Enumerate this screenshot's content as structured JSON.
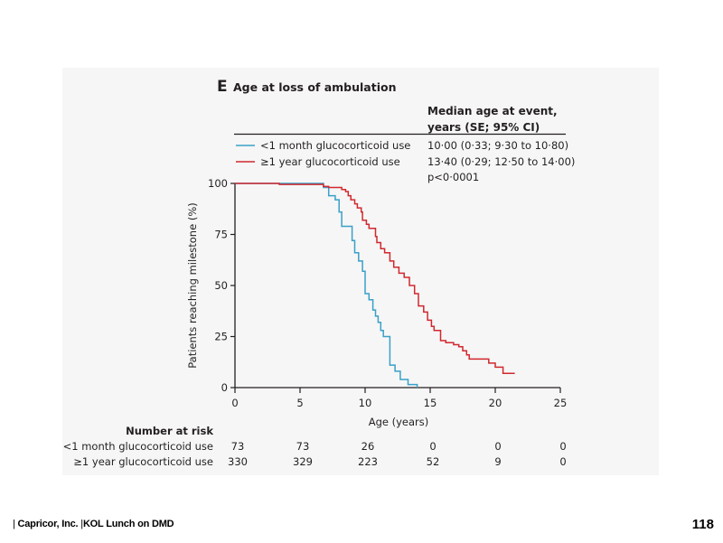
{
  "chart_data": {
    "type": "line",
    "subtype": "kaplan-meier step",
    "panel_letter": "E",
    "title": "Age at loss of ambulation",
    "xlabel": "Age (years)",
    "ylabel": "Patients reaching milestone (%)",
    "xlim": [
      0,
      25
    ],
    "ylim": [
      0,
      100
    ],
    "x_ticks": [
      0,
      5,
      10,
      15,
      20,
      25
    ],
    "y_ticks": [
      0,
      25,
      50,
      75,
      100
    ],
    "grid": false,
    "legend_position": "top",
    "legend_header": [
      "Median age at event,",
      "years (SE; 95% CI)"
    ],
    "p_value": "p<0·0001",
    "series": [
      {
        "name": "<1 month glucocorticoid use",
        "color": "#3aa0c8",
        "median_text": "10·00 (0·33; 9·30 to 10·80)",
        "points": [
          [
            0,
            100
          ],
          [
            6.8,
            100
          ],
          [
            6.8,
            98
          ],
          [
            7.2,
            98
          ],
          [
            7.2,
            94
          ],
          [
            7.7,
            94
          ],
          [
            7.7,
            92
          ],
          [
            8.0,
            92
          ],
          [
            8.0,
            86
          ],
          [
            8.2,
            86
          ],
          [
            8.2,
            79
          ],
          [
            9.0,
            79
          ],
          [
            9.0,
            72
          ],
          [
            9.2,
            72
          ],
          [
            9.2,
            66
          ],
          [
            9.5,
            66
          ],
          [
            9.5,
            62
          ],
          [
            9.8,
            62
          ],
          [
            9.8,
            57
          ],
          [
            10.0,
            57
          ],
          [
            10.0,
            46
          ],
          [
            10.3,
            46
          ],
          [
            10.3,
            43
          ],
          [
            10.6,
            43
          ],
          [
            10.6,
            38
          ],
          [
            10.8,
            38
          ],
          [
            10.8,
            35
          ],
          [
            11.0,
            35
          ],
          [
            11.0,
            32
          ],
          [
            11.2,
            32
          ],
          [
            11.2,
            28
          ],
          [
            11.4,
            28
          ],
          [
            11.4,
            25
          ],
          [
            11.9,
            25
          ],
          [
            11.9,
            11
          ],
          [
            12.3,
            11
          ],
          [
            12.3,
            8
          ],
          [
            12.7,
            8
          ],
          [
            12.7,
            4
          ],
          [
            13.3,
            4
          ],
          [
            13.3,
            1.5
          ],
          [
            14.0,
            1.5
          ],
          [
            14.0,
            0
          ]
        ]
      },
      {
        "name": "≥1 year glucocorticoid use",
        "color": "#d0282e",
        "median_text": "13·40 (0·29; 12·50 to 14·00)",
        "points": [
          [
            0,
            100
          ],
          [
            3.4,
            100
          ],
          [
            3.4,
            99.5
          ],
          [
            6.8,
            99.5
          ],
          [
            6.8,
            98.5
          ],
          [
            7.2,
            98.5
          ],
          [
            7.2,
            98
          ],
          [
            8.2,
            98
          ],
          [
            8.2,
            97
          ],
          [
            8.5,
            97
          ],
          [
            8.5,
            96
          ],
          [
            8.7,
            96
          ],
          [
            8.7,
            94
          ],
          [
            8.9,
            94
          ],
          [
            8.9,
            92
          ],
          [
            9.2,
            92
          ],
          [
            9.2,
            90
          ],
          [
            9.4,
            90
          ],
          [
            9.4,
            88
          ],
          [
            9.7,
            88
          ],
          [
            9.7,
            86
          ],
          [
            9.8,
            86
          ],
          [
            9.8,
            82
          ],
          [
            10.1,
            82
          ],
          [
            10.1,
            80
          ],
          [
            10.3,
            80
          ],
          [
            10.3,
            78
          ],
          [
            10.8,
            78
          ],
          [
            10.8,
            74
          ],
          [
            10.9,
            74
          ],
          [
            10.9,
            71
          ],
          [
            11.2,
            71
          ],
          [
            11.2,
            68
          ],
          [
            11.5,
            68
          ],
          [
            11.5,
            66
          ],
          [
            11.9,
            66
          ],
          [
            11.9,
            62
          ],
          [
            12.2,
            62
          ],
          [
            12.2,
            59
          ],
          [
            12.6,
            59
          ],
          [
            12.6,
            56
          ],
          [
            13.0,
            56
          ],
          [
            13.0,
            54
          ],
          [
            13.4,
            54
          ],
          [
            13.4,
            50
          ],
          [
            13.8,
            50
          ],
          [
            13.8,
            46
          ],
          [
            14.1,
            46
          ],
          [
            14.1,
            40
          ],
          [
            14.5,
            40
          ],
          [
            14.5,
            37
          ],
          [
            14.8,
            37
          ],
          [
            14.8,
            33
          ],
          [
            15.1,
            33
          ],
          [
            15.1,
            30
          ],
          [
            15.3,
            30
          ],
          [
            15.3,
            28
          ],
          [
            15.8,
            28
          ],
          [
            15.8,
            23
          ],
          [
            16.2,
            23
          ],
          [
            16.2,
            22
          ],
          [
            16.8,
            22
          ],
          [
            16.8,
            21
          ],
          [
            17.2,
            21
          ],
          [
            17.2,
            20
          ],
          [
            17.5,
            20
          ],
          [
            17.5,
            18
          ],
          [
            17.8,
            18
          ],
          [
            17.8,
            16
          ],
          [
            18.0,
            16
          ],
          [
            18.0,
            14
          ],
          [
            19.5,
            14
          ],
          [
            19.5,
            12
          ],
          [
            20.0,
            12
          ],
          [
            20.0,
            10
          ],
          [
            20.6,
            10
          ],
          [
            20.6,
            7
          ],
          [
            21.5,
            7
          ]
        ]
      }
    ],
    "number_at_risk": {
      "title": "Number at risk",
      "times": [
        0,
        5,
        10,
        15,
        20,
        25
      ],
      "rows": [
        {
          "label": "<1 month glucocorticoid use",
          "values": [
            73,
            73,
            26,
            0,
            0,
            0
          ]
        },
        {
          "label": "≥1 year glucocorticoid use",
          "values": [
            330,
            329,
            223,
            52,
            9,
            0
          ]
        }
      ]
    }
  },
  "footer": {
    "company": "Capricor, Inc.",
    "event": "KOL Lunch on DMD",
    "page_number": "118"
  }
}
